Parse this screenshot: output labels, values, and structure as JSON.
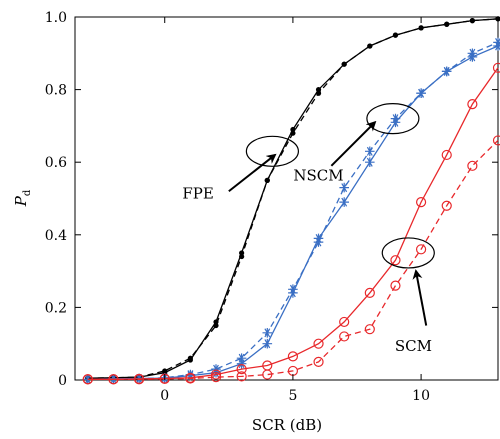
{
  "chart_data": {
    "type": "line",
    "xlabel": "SCR (dB)",
    "ylabel": "P_d",
    "ylabel_main": "P",
    "ylabel_sub": "d",
    "xlim": [
      -3.5,
      13
    ],
    "ylim": [
      0,
      1
    ],
    "xticks": [
      0,
      5,
      10
    ],
    "xtick_labels": [
      "0",
      "5",
      "10"
    ],
    "yticks": [
      0,
      0.2,
      0.4,
      0.6,
      0.8,
      1.0
    ],
    "ytick_labels": [
      "0",
      "0.2",
      "0.4",
      "0.6",
      "0.8",
      "1.0"
    ],
    "grid": false,
    "series": [
      {
        "group": "FPE",
        "style": "solid",
        "marker": "dot",
        "color": "#000000",
        "x": [
          -3,
          -2,
          -1,
          0,
          1,
          2,
          3,
          4,
          5,
          6,
          7,
          8,
          9,
          10,
          11,
          12,
          13
        ],
        "y": [
          0.005,
          0.006,
          0.008,
          0.02,
          0.055,
          0.16,
          0.35,
          0.55,
          0.69,
          0.8,
          0.87,
          0.92,
          0.95,
          0.97,
          0.98,
          0.99,
          0.995
        ]
      },
      {
        "group": "FPE",
        "style": "dashed",
        "marker": "dot",
        "color": "#000000",
        "x": [
          -3,
          -2,
          -1,
          0,
          1,
          2,
          3,
          4,
          5,
          6,
          7,
          8,
          9,
          10,
          11,
          12,
          13
        ],
        "y": [
          0.005,
          0.006,
          0.008,
          0.025,
          0.06,
          0.15,
          0.34,
          0.55,
          0.68,
          0.79,
          0.87,
          0.92,
          0.95,
          0.97,
          0.98,
          0.99,
          0.995
        ]
      },
      {
        "group": "NSCM",
        "style": "solid",
        "marker": "star",
        "color": "#3a6fc4",
        "x": [
          -3,
          -2,
          -1,
          0,
          1,
          2,
          3,
          4,
          5,
          6,
          7,
          8,
          9,
          10,
          11,
          12,
          13
        ],
        "y": [
          0.002,
          0.003,
          0.004,
          0.005,
          0.012,
          0.02,
          0.045,
          0.1,
          0.24,
          0.39,
          0.49,
          0.6,
          0.71,
          0.79,
          0.85,
          0.89,
          0.92
        ]
      },
      {
        "group": "NSCM",
        "style": "dashed",
        "marker": "star",
        "color": "#3a6fc4",
        "x": [
          -3,
          -2,
          -1,
          0,
          1,
          2,
          3,
          4,
          5,
          6,
          7,
          8,
          9,
          10,
          11,
          12,
          13
        ],
        "y": [
          0.002,
          0.003,
          0.004,
          0.006,
          0.015,
          0.03,
          0.06,
          0.13,
          0.25,
          0.38,
          0.53,
          0.63,
          0.72,
          0.79,
          0.85,
          0.9,
          0.93
        ]
      },
      {
        "group": "SCM",
        "style": "solid",
        "marker": "circle",
        "color": "#e8282b",
        "x": [
          -3,
          -2,
          -1,
          0,
          1,
          2,
          3,
          4,
          5,
          6,
          7,
          8,
          9,
          10,
          11,
          12,
          13
        ],
        "y": [
          0.002,
          0.002,
          0.003,
          0.004,
          0.006,
          0.015,
          0.03,
          0.04,
          0.065,
          0.1,
          0.16,
          0.24,
          0.33,
          0.49,
          0.62,
          0.76,
          0.86
        ]
      },
      {
        "group": "SCM",
        "style": "dashed",
        "marker": "circle",
        "color": "#e8282b",
        "x": [
          -3,
          -2,
          -1,
          0,
          1,
          2,
          3,
          4,
          5,
          6,
          7,
          8,
          9,
          10,
          11,
          12,
          13
        ],
        "y": [
          0.002,
          0.002,
          0.002,
          0.003,
          0.004,
          0.008,
          0.01,
          0.015,
          0.025,
          0.05,
          0.12,
          0.14,
          0.26,
          0.36,
          0.48,
          0.59,
          0.66
        ]
      }
    ],
    "annotations": [
      {
        "text": "FPE",
        "ellipse_at": [
          4.2,
          0.63
        ],
        "text_at": [
          1.3,
          0.5
        ],
        "arrow_from": [
          2.5,
          0.52
        ],
        "arrow_to": [
          4.3,
          0.62
        ]
      },
      {
        "text": "NSCM",
        "ellipse_at": [
          8.9,
          0.72
        ],
        "text_at": [
          6.0,
          0.55
        ],
        "arrow_from": [
          6.5,
          0.59
        ],
        "arrow_to": [
          8.2,
          0.71
        ]
      },
      {
        "text": "SCM",
        "ellipse_at": [
          9.5,
          0.35
        ],
        "text_at": [
          9.7,
          0.08
        ],
        "arrow_from": [
          10.2,
          0.15
        ],
        "arrow_to": [
          9.8,
          0.3
        ]
      }
    ]
  }
}
